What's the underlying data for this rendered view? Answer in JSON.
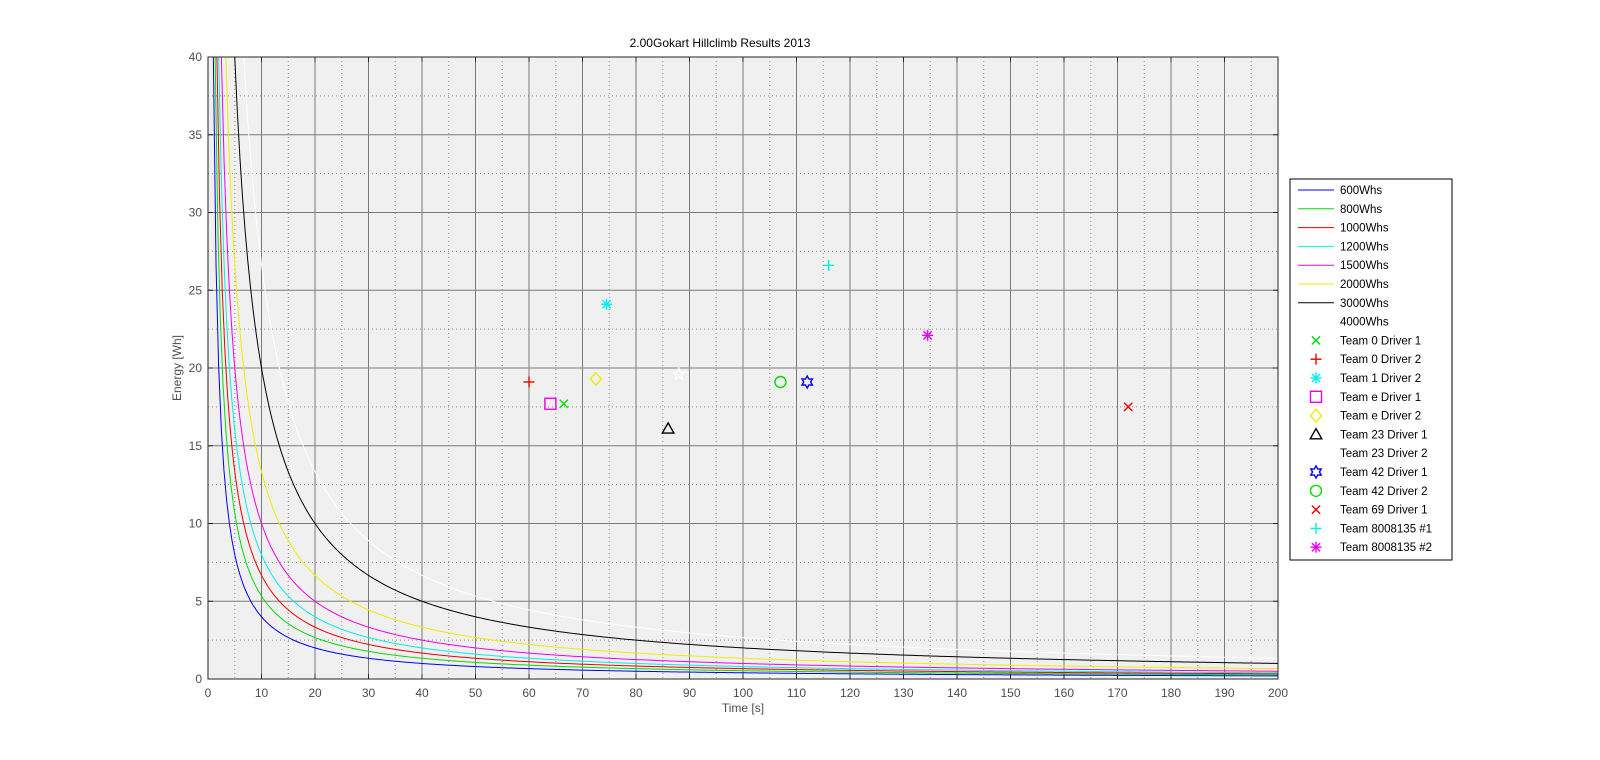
{
  "chart_data": {
    "type": "line",
    "title": "2.00Gokart Hillclimb Results 2013",
    "xlabel": "Time [s]",
    "ylabel": "Energy [Wh]",
    "xlim": [
      0,
      200
    ],
    "ylim": [
      0,
      40
    ],
    "x_ticks": [
      0,
      10,
      20,
      30,
      40,
      50,
      60,
      70,
      80,
      90,
      100,
      110,
      120,
      130,
      140,
      150,
      160,
      170,
      180,
      190,
      200
    ],
    "y_ticks": [
      0,
      5,
      10,
      15,
      20,
      25,
      30,
      35,
      40
    ],
    "grid": true,
    "minor_grid": true,
    "legend_position": "right",
    "plot_background": "#f0f0f0",
    "curves": [
      {
        "name": "600Whs",
        "constant": 600,
        "color": "#0000ff"
      },
      {
        "name": "800Whs",
        "constant": 800,
        "color": "#00dd00"
      },
      {
        "name": "1000Whs",
        "constant": 1000,
        "color": "#ee0000"
      },
      {
        "name": "1200Whs",
        "constant": 1200,
        "color": "#00eeee"
      },
      {
        "name": "1500Whs",
        "constant": 1500,
        "color": "#ee00ee"
      },
      {
        "name": "2000Whs",
        "constant": 2000,
        "color": "#eeee00"
      },
      {
        "name": "3000Whs",
        "constant": 3000,
        "color": "#000000"
      },
      {
        "name": "4000Whs",
        "constant": 4000,
        "color": "#ffffff"
      }
    ],
    "points": [
      {
        "name": "Team 0 Driver 1",
        "x": 66.5,
        "y": 17.7,
        "marker": "x",
        "color": "#00dd00"
      },
      {
        "name": "Team 0 Driver 2",
        "x": 60.0,
        "y": 19.1,
        "marker": "plus",
        "color": "#ee0000"
      },
      {
        "name": "Team 1 Driver 2",
        "x": 74.5,
        "y": 24.1,
        "marker": "asterisk",
        "color": "#00eeee"
      },
      {
        "name": "Team e Driver 1",
        "x": 64.0,
        "y": 17.7,
        "marker": "square",
        "color": "#ee00ee"
      },
      {
        "name": "Team e Driver 2",
        "x": 72.5,
        "y": 19.3,
        "marker": "diamond",
        "color": "#eeee00"
      },
      {
        "name": "Team 23 Driver 1",
        "x": 86.0,
        "y": 16.1,
        "marker": "triangle",
        "color": "#000000"
      },
      {
        "name": "Team 23 Driver 2",
        "x": 88.0,
        "y": 19.6,
        "marker": "star",
        "color": "#ffffff"
      },
      {
        "name": "Team 42 Driver 1",
        "x": 112.0,
        "y": 19.1,
        "marker": "hexagram",
        "color": "#0000ff"
      },
      {
        "name": "Team 42 Driver 2",
        "x": 107.0,
        "y": 19.1,
        "marker": "circle",
        "color": "#00dd00"
      },
      {
        "name": "Team 69 Driver 1",
        "x": 172.0,
        "y": 17.5,
        "marker": "x",
        "color": "#ee0000"
      },
      {
        "name": "Team 8008135 #1",
        "x": 116.0,
        "y": 26.6,
        "marker": "plus",
        "color": "#00eeee"
      },
      {
        "name": "Team 8008135 #2",
        "x": 134.5,
        "y": 22.1,
        "marker": "asterisk",
        "color": "#ee00ee"
      }
    ]
  }
}
